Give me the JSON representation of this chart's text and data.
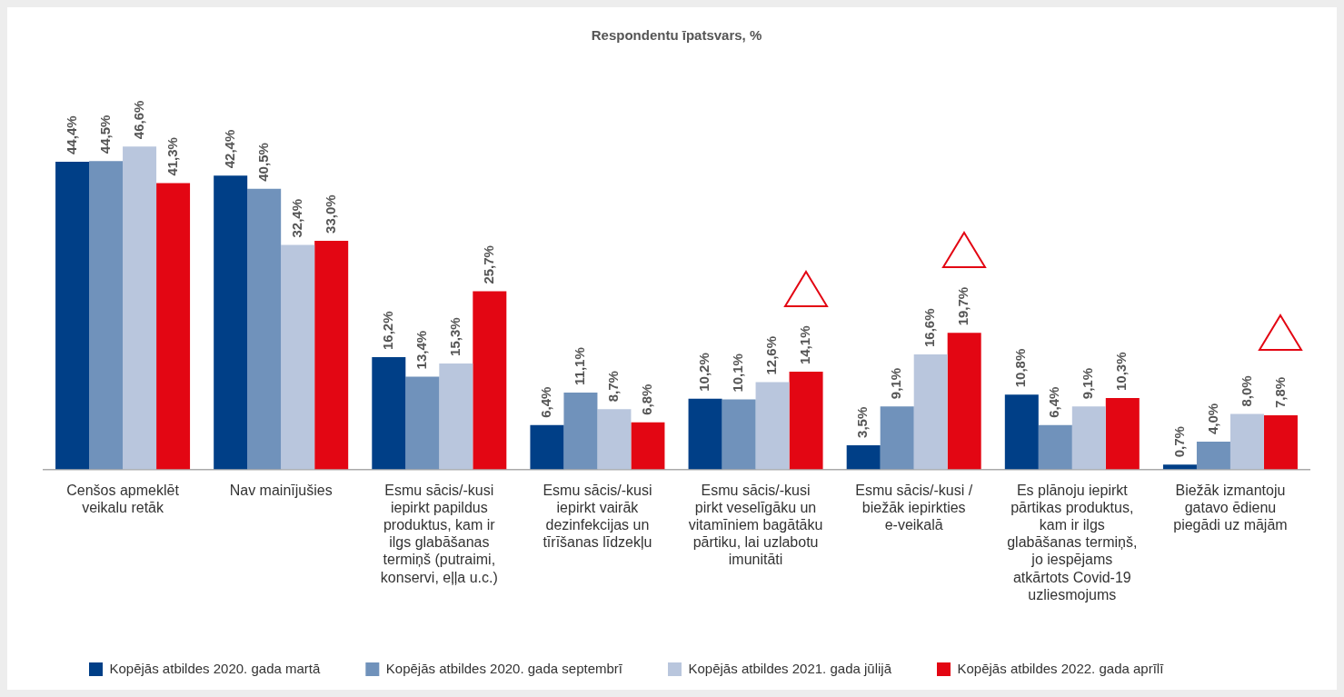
{
  "chart_data": {
    "type": "bar",
    "title": "Respondentu īpatsvars, %",
    "categories": [
      "Cenšos apmeklēt veikalu retāk",
      "Nav mainījušies",
      "Esmu sācis/-kusi iepirkt papildus produktus, kam ir ilgs glabāšanas termiņš (putraimi, konservi, eļļa u.c.)",
      "Esmu sācis/-kusi iepirkt vairāk dezinfekcijas un tīrīšanas līdzekļu",
      "Esmu sācis/-kusi pirkt veselīgāku un vitamīniem bagātāku pārtiku, lai uzlabotu imunitāti",
      "Esmu sācis/-kusi / biežāk iepirkties e-veikalā",
      "Es plānoju iepirkt pārtikas produktus, kam ir ilgs glabāšanas termiņš, jo iespējams atkārtots Covid-19 uzliesmojums",
      "Biežāk izmantoju gatavo ēdienu piegādi uz mājām"
    ],
    "series": [
      {
        "name": "Kopējās atbildes 2020. gada martā",
        "color": "#003f87",
        "values": [
          44.4,
          42.4,
          16.2,
          6.4,
          10.2,
          3.5,
          10.8,
          0.7
        ],
        "value_labels": [
          "44,4%",
          "42,4%",
          "16,2%",
          "6,4%",
          "10,2%",
          "3,5%",
          "10,8%",
          "0,7%"
        ]
      },
      {
        "name": "Kopējās atbildes 2020. gada septembrī",
        "color": "#7092bb",
        "values": [
          44.5,
          40.5,
          13.4,
          11.1,
          10.1,
          9.1,
          6.4,
          4.0
        ],
        "value_labels": [
          "44,5%",
          "40,5%",
          "13,4%",
          "11,1%",
          "10,1%",
          "9,1%",
          "6,4%",
          "4,0%"
        ]
      },
      {
        "name": "Kopējās atbildes 2021. gada jūlijā",
        "color": "#b9c6dd",
        "values": [
          46.6,
          32.4,
          15.3,
          8.7,
          12.6,
          16.6,
          9.1,
          8.0
        ],
        "value_labels": [
          "46,6%",
          "32,4%",
          "15,3%",
          "8,7%",
          "12,6%",
          "16,6%",
          "9,1%",
          "8,0%"
        ]
      },
      {
        "name": "Kopējās atbildes 2022. gada aprīlī",
        "color": "#e30613",
        "values": [
          41.3,
          33.0,
          25.7,
          6.8,
          14.1,
          19.7,
          10.3,
          7.8
        ],
        "value_labels": [
          "41,3%",
          "33,0%",
          "25,7%",
          "6,8%",
          "14,1%",
          "19,7%",
          "10,3%",
          "7,8%"
        ]
      }
    ],
    "grid": false,
    "legend": "bottom"
  }
}
